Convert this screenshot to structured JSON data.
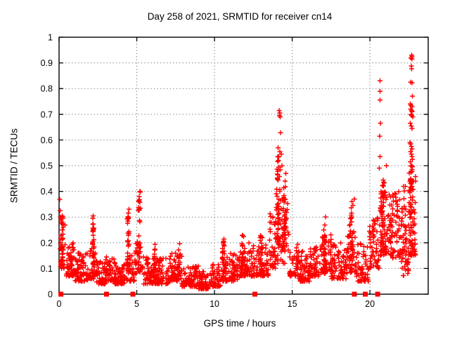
{
  "chart_data": {
    "type": "scatter",
    "title": "Day 258 of 2021, SRMTID for receiver cn14",
    "xlabel": "GPS time / hours",
    "ylabel": "SRMTID / TECUs",
    "xlim": [
      0,
      23.75
    ],
    "ylim": [
      0,
      1
    ],
    "x_tick_values": [
      0,
      5,
      10,
      15,
      20
    ],
    "x_tick_labels": [
      "0",
      "5",
      "10",
      "15",
      "20"
    ],
    "y_tick_values": [
      0,
      0.1,
      0.2,
      0.3,
      0.4,
      0.5,
      0.6,
      0.7,
      0.8,
      0.9,
      1
    ],
    "y_tick_labels": [
      "0",
      "0.1",
      "0.2",
      "0.3",
      "0.4",
      "0.5",
      "0.6",
      "0.7",
      "0.8",
      "0.9",
      "1"
    ],
    "grid": true,
    "grid_color": "#8a8a8a",
    "marker_color": "#ff0000",
    "series": [
      {
        "name": "srmtid",
        "marker": "plus",
        "baseline_segments": [
          [
            0.05,
            0.45,
            0.1,
            0.28,
            30,
            1.5
          ],
          [
            0.45,
            1.0,
            0.07,
            0.22,
            55,
            1.7
          ],
          [
            1.0,
            1.9,
            0.05,
            0.16,
            70,
            1.7
          ],
          [
            1.9,
            2.4,
            0.06,
            0.18,
            30,
            1.7
          ],
          [
            2.4,
            3.0,
            0.04,
            0.13,
            50,
            1.7
          ],
          [
            3.0,
            3.6,
            0.05,
            0.15,
            50,
            1.7
          ],
          [
            3.6,
            4.2,
            0.04,
            0.12,
            50,
            1.7
          ],
          [
            4.2,
            4.9,
            0.05,
            0.16,
            40,
            1.7
          ],
          [
            4.9,
            5.4,
            0.08,
            0.2,
            30,
            1.6
          ],
          [
            5.4,
            6.3,
            0.04,
            0.15,
            65,
            1.7
          ],
          [
            6.3,
            7.1,
            0.04,
            0.14,
            60,
            1.7
          ],
          [
            7.1,
            7.9,
            0.05,
            0.16,
            60,
            1.7
          ],
          [
            7.9,
            9.0,
            0.03,
            0.11,
            85,
            1.7
          ],
          [
            9.0,
            9.8,
            0.02,
            0.09,
            70,
            1.7
          ],
          [
            9.8,
            10.4,
            0.03,
            0.12,
            50,
            1.7
          ],
          [
            10.4,
            11.5,
            0.05,
            0.16,
            80,
            1.7
          ],
          [
            11.5,
            12.7,
            0.07,
            0.2,
            85,
            1.7
          ],
          [
            12.7,
            13.5,
            0.07,
            0.2,
            60,
            1.7
          ],
          [
            13.5,
            14.0,
            0.1,
            0.32,
            40,
            1.4
          ],
          [
            14.0,
            14.8,
            0.12,
            0.38,
            50,
            1.4
          ],
          [
            14.8,
            15.4,
            0.07,
            0.2,
            45,
            1.7
          ],
          [
            15.4,
            16.1,
            0.05,
            0.17,
            55,
            1.7
          ],
          [
            16.1,
            16.8,
            0.07,
            0.2,
            55,
            1.7
          ],
          [
            16.8,
            17.5,
            0.08,
            0.24,
            55,
            1.6
          ],
          [
            17.5,
            18.5,
            0.06,
            0.2,
            70,
            1.7
          ],
          [
            18.5,
            19.1,
            0.08,
            0.25,
            40,
            1.5
          ],
          [
            19.1,
            19.95,
            0.05,
            0.2,
            60,
            1.7
          ],
          [
            19.95,
            20.6,
            0.1,
            0.3,
            55,
            1.5
          ],
          [
            20.6,
            21.2,
            0.15,
            0.4,
            55,
            1.2
          ],
          [
            21.2,
            22.0,
            0.14,
            0.4,
            75,
            1.2
          ],
          [
            22.0,
            22.5,
            0.07,
            0.42,
            60,
            1.2
          ],
          [
            22.5,
            22.95,
            0.15,
            0.48,
            55,
            1.2
          ]
        ],
        "spike_columns": [
          [
            0.2,
            0.1,
            0.12,
            0.31,
            25
          ],
          [
            2.2,
            0.08,
            0.1,
            0.3,
            30
          ],
          [
            4.45,
            0.1,
            0.08,
            0.33,
            30
          ],
          [
            5.15,
            0.1,
            0.12,
            0.41,
            25
          ],
          [
            6.15,
            0.08,
            0.06,
            0.21,
            15
          ],
          [
            7.7,
            0.1,
            0.06,
            0.2,
            15
          ],
          [
            10.6,
            0.1,
            0.06,
            0.22,
            20
          ],
          [
            11.8,
            0.1,
            0.08,
            0.23,
            18
          ],
          [
            13.0,
            0.1,
            0.08,
            0.25,
            18
          ],
          [
            14.1,
            0.15,
            0.18,
            0.55,
            45
          ],
          [
            14.5,
            0.12,
            0.15,
            0.42,
            30
          ],
          [
            17.1,
            0.1,
            0.08,
            0.3,
            20
          ],
          [
            18.8,
            0.12,
            0.08,
            0.37,
            30
          ],
          [
            20.8,
            0.15,
            0.15,
            0.46,
            35
          ],
          [
            22.65,
            0.12,
            0.15,
            0.5,
            35
          ]
        ],
        "outlier_points": [
          [
            0.05,
            0.369
          ],
          [
            0.06,
            0.325
          ],
          [
            0.1,
            0.3
          ],
          [
            0.12,
            0.29
          ],
          [
            5.2,
            0.4
          ],
          [
            5.15,
            0.38
          ],
          [
            14.15,
            0.715
          ],
          [
            14.2,
            0.705
          ],
          [
            14.18,
            0.695
          ],
          [
            14.22,
            0.69
          ],
          [
            14.25,
            0.628
          ],
          [
            14.1,
            0.57
          ],
          [
            14.2,
            0.555
          ],
          [
            14.3,
            0.545
          ],
          [
            14.12,
            0.52
          ],
          [
            14.35,
            0.5
          ],
          [
            14.6,
            0.47
          ],
          [
            14.55,
            0.44
          ],
          [
            20.65,
            0.83
          ],
          [
            20.66,
            0.79
          ],
          [
            20.64,
            0.755
          ],
          [
            20.67,
            0.665
          ],
          [
            20.63,
            0.615
          ],
          [
            20.66,
            0.535
          ],
          [
            20.6,
            0.49
          ],
          [
            21.05,
            0.5
          ],
          [
            19.0,
            0.37
          ],
          [
            18.85,
            0.36
          ],
          [
            18.9,
            0.345
          ],
          [
            17.15,
            0.3
          ],
          [
            2.2,
            0.305
          ],
          [
            2.18,
            0.295
          ],
          [
            4.5,
            0.33
          ],
          [
            4.45,
            0.315
          ],
          [
            22.68,
            0.93
          ],
          [
            22.72,
            0.925
          ],
          [
            22.65,
            0.92
          ],
          [
            22.7,
            0.915
          ],
          [
            22.66,
            0.888
          ],
          [
            22.69,
            0.877
          ],
          [
            22.63,
            0.825
          ],
          [
            22.7,
            0.823
          ],
          [
            22.74,
            0.77
          ],
          [
            22.6,
            0.74
          ],
          [
            22.65,
            0.735
          ],
          [
            22.7,
            0.73
          ],
          [
            22.62,
            0.72
          ],
          [
            22.68,
            0.715
          ],
          [
            22.72,
            0.71
          ],
          [
            22.64,
            0.7
          ],
          [
            22.69,
            0.695
          ],
          [
            22.75,
            0.69
          ],
          [
            22.6,
            0.665
          ],
          [
            22.66,
            0.655
          ],
          [
            22.72,
            0.645
          ],
          [
            22.58,
            0.59
          ],
          [
            22.62,
            0.585
          ],
          [
            22.66,
            0.575
          ],
          [
            22.7,
            0.565
          ],
          [
            22.63,
            0.555
          ],
          [
            22.67,
            0.545
          ],
          [
            22.71,
            0.535
          ],
          [
            22.74,
            0.525
          ],
          [
            22.6,
            0.515
          ],
          [
            22.69,
            0.5
          ]
        ]
      },
      {
        "name": "zero-flags",
        "marker": "filled-square",
        "points": [
          [
            0.12,
            0
          ],
          [
            3.05,
            0
          ],
          [
            4.75,
            0
          ],
          [
            12.6,
            0
          ],
          [
            19.0,
            0
          ],
          [
            19.7,
            0
          ],
          [
            20.5,
            0
          ]
        ]
      }
    ]
  }
}
